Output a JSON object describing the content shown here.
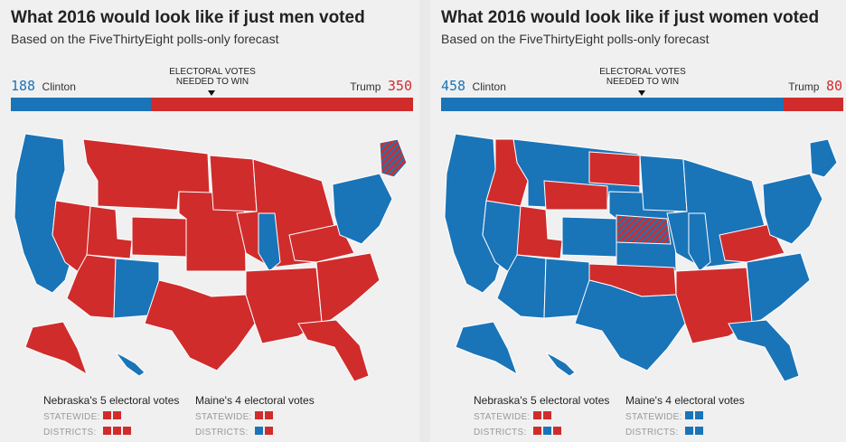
{
  "colors": {
    "clinton": "#1a74b8",
    "trump": "#d02c2c",
    "background": "#f0f0f0"
  },
  "panels": [
    {
      "title": "What 2016 would look like if just men voted",
      "subtitle": "Based on the FiveThirtyEight polls-only forecast",
      "clinton_ev": "188",
      "clinton_label": "Clinton",
      "trump_ev": "350",
      "trump_label": "Trump",
      "needed_line1": "ELECTORAL VOTES",
      "needed_line2": "NEEDED TO WIN",
      "clinton_share": 0.349,
      "nebraska": {
        "heading": "Nebraska's 5 electoral votes",
        "statewide_label": "STATEWIDE:",
        "districts_label": "DISTRICTS:",
        "statewide": [
          "trump",
          "trump"
        ],
        "districts": [
          "trump",
          "trump",
          "trump"
        ]
      },
      "maine": {
        "heading": "Maine's 4 electoral votes",
        "statewide_label": "STATEWIDE:",
        "districts_label": "DISTRICTS:",
        "statewide": [
          "trump",
          "trump"
        ],
        "districts": [
          "clinton",
          "trump"
        ]
      },
      "winners": {
        "west_coast": "clinton",
        "nevada": "trump",
        "mountain_north": "trump",
        "utah": "trump",
        "arizona": "trump",
        "colorado": "trump",
        "new_mexico": "clinton",
        "plains": "trump",
        "texas": "trump",
        "minnesota": "trump",
        "midwest": "trump",
        "illinois": "clinton",
        "south": "trump",
        "southeast": "trump",
        "florida": "trump",
        "appalachia": "trump",
        "northeast": "clinton",
        "maine": "split",
        "alaska": "trump",
        "hawaii": "clinton"
      }
    },
    {
      "title": "What 2016 would look like if just women voted",
      "subtitle": "Based on the FiveThirtyEight polls-only forecast",
      "clinton_ev": "458",
      "clinton_label": "Clinton",
      "trump_ev": "80",
      "trump_label": "Trump",
      "needed_line1": "ELECTORAL VOTES",
      "needed_line2": "NEEDED TO WIN",
      "clinton_share": 0.851,
      "nebraska": {
        "heading": "Nebraska's 5 electoral votes",
        "statewide_label": "STATEWIDE:",
        "districts_label": "DISTRICTS:",
        "statewide": [
          "trump",
          "trump"
        ],
        "districts": [
          "trump",
          "clinton",
          "trump"
        ]
      },
      "maine": {
        "heading": "Maine's 4 electoral votes",
        "statewide_label": "STATEWIDE:",
        "districts_label": "DISTRICTS:",
        "statewide": [
          "clinton",
          "clinton"
        ],
        "districts": [
          "clinton",
          "clinton"
        ]
      },
      "winners": {
        "west_coast": "clinton",
        "nevada": "clinton",
        "mountain_north": "clinton",
        "utah": "trump",
        "arizona": "clinton",
        "colorado": "clinton",
        "new_mexico": "clinton",
        "plains": "clinton",
        "texas": "clinton",
        "minnesota": "clinton",
        "midwest": "clinton",
        "illinois": "clinton",
        "south": "trump",
        "southeast": "clinton",
        "florida": "clinton",
        "appalachia": "trump",
        "northeast": "clinton",
        "maine": "clinton",
        "alaska": "clinton",
        "hawaii": "clinton",
        "idaho": "trump",
        "wyoming": "trump",
        "north_dakota": "trump",
        "nebraska": "split",
        "oklahoma": "trump"
      }
    }
  ]
}
